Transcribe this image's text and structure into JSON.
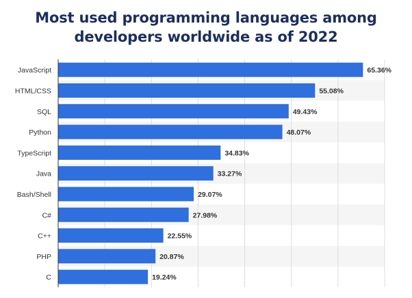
{
  "chart_data": {
    "type": "bar",
    "orientation": "horizontal",
    "title_line1": "Most used programming languages among",
    "title_line2": "developers worldwide as of 2022",
    "xlabel": "",
    "ylabel": "",
    "categories": [
      "JavaScript",
      "HTML/CSS",
      "SQL",
      "Python",
      "TypeScript",
      "Java",
      "Bash/Shell",
      "C#",
      "C++",
      "PHP",
      "C"
    ],
    "values": [
      65.36,
      55.08,
      49.43,
      48.07,
      34.83,
      33.27,
      29.07,
      27.98,
      22.55,
      20.87,
      19.24
    ],
    "value_labels": [
      "65.36%",
      "55.08%",
      "49.43%",
      "48.07%",
      "34.83%",
      "33.27%",
      "29.07%",
      "27.98%",
      "22.55%",
      "20.87%",
      "19.24%"
    ],
    "xlim": [
      0,
      70
    ],
    "grid": true,
    "colors": {
      "bar": "#2f6fde",
      "title": "#1c2f5c",
      "band": "#f5f5f5",
      "grid": "#dddddd",
      "axis": "#333333"
    }
  }
}
